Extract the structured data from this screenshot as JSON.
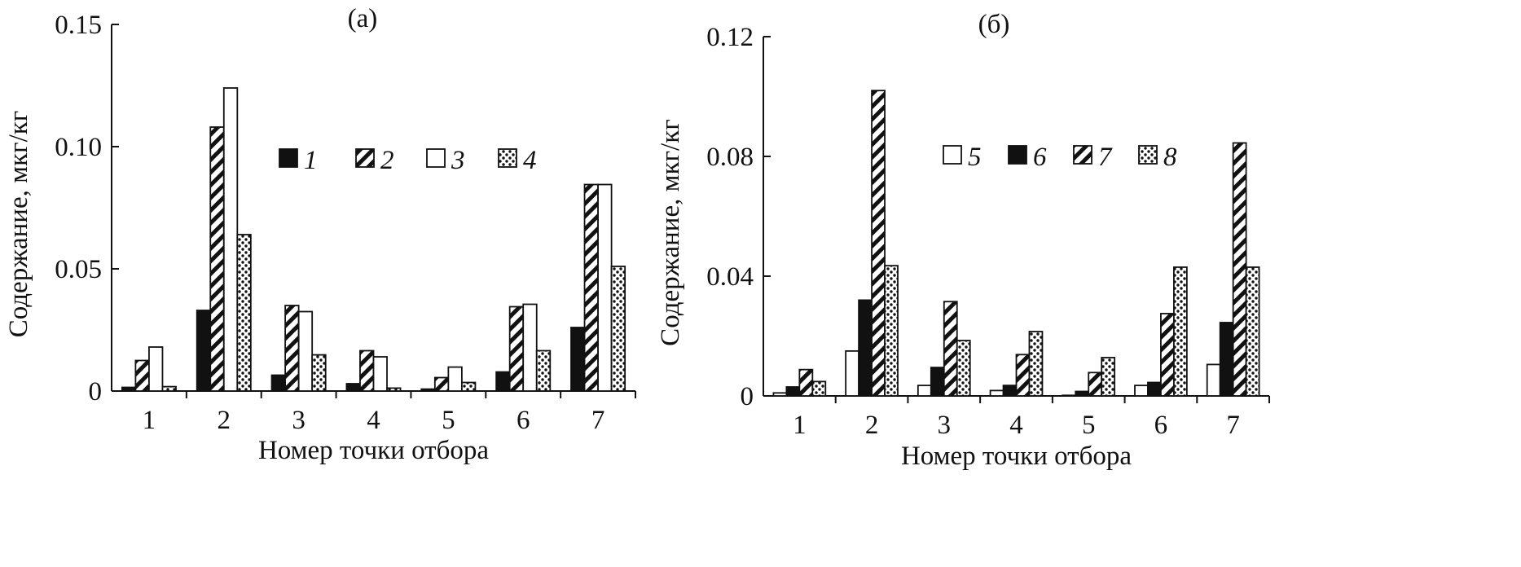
{
  "chart_data": [
    {
      "type": "bar",
      "title": "(а)",
      "xlabel": "Номер точки отбора",
      "ylabel": "Содержание, мкг/кг",
      "categories": [
        "1",
        "2",
        "3",
        "4",
        "5",
        "6",
        "7"
      ],
      "ylim": [
        0,
        0.15
      ],
      "yticks": [
        "0",
        "0.05",
        "0.10",
        "0.15"
      ],
      "ytick_values": [
        0,
        0.05,
        0.1,
        0.15
      ],
      "legend_position": "center-top",
      "series": [
        {
          "name": "1",
          "style": "black",
          "values": [
            0.0015,
            0.033,
            0.0065,
            0.003,
            0.0008,
            0.0078,
            0.026
          ]
        },
        {
          "name": "2",
          "style": "hatch",
          "values": [
            0.0125,
            0.108,
            0.035,
            0.0165,
            0.0055,
            0.0345,
            0.0845
          ]
        },
        {
          "name": "3",
          "style": "white",
          "values": [
            0.018,
            0.124,
            0.0325,
            0.014,
            0.0098,
            0.0355,
            0.0845
          ]
        },
        {
          "name": "4",
          "style": "dots",
          "values": [
            0.0018,
            0.064,
            0.0148,
            0.0012,
            0.0035,
            0.0165,
            0.051
          ]
        }
      ]
    },
    {
      "type": "bar",
      "title": "(б)",
      "xlabel": "Номер точки отбора",
      "ylabel": "Содержание, мкг/кг",
      "categories": [
        "1",
        "2",
        "3",
        "4",
        "5",
        "6",
        "7"
      ],
      "ylim": [
        0,
        0.12
      ],
      "yticks": [
        "0",
        "0.04",
        "0.08",
        "0.12"
      ],
      "ytick_values": [
        0,
        0.04,
        0.08,
        0.12
      ],
      "legend_position": "center-top",
      "series": [
        {
          "name": "5",
          "style": "white",
          "values": [
            0.001,
            0.015,
            0.0035,
            0.0018,
            0.0002,
            0.0035,
            0.0105
          ]
        },
        {
          "name": "6",
          "style": "black",
          "values": [
            0.003,
            0.032,
            0.0095,
            0.0035,
            0.0015,
            0.0045,
            0.0245
          ]
        },
        {
          "name": "7",
          "style": "hatch",
          "values": [
            0.0088,
            0.102,
            0.0315,
            0.0138,
            0.0078,
            0.0275,
            0.0845
          ]
        },
        {
          "name": "8",
          "style": "dots",
          "values": [
            0.0048,
            0.0435,
            0.0185,
            0.0215,
            0.0128,
            0.043,
            0.043
          ]
        }
      ]
    }
  ]
}
